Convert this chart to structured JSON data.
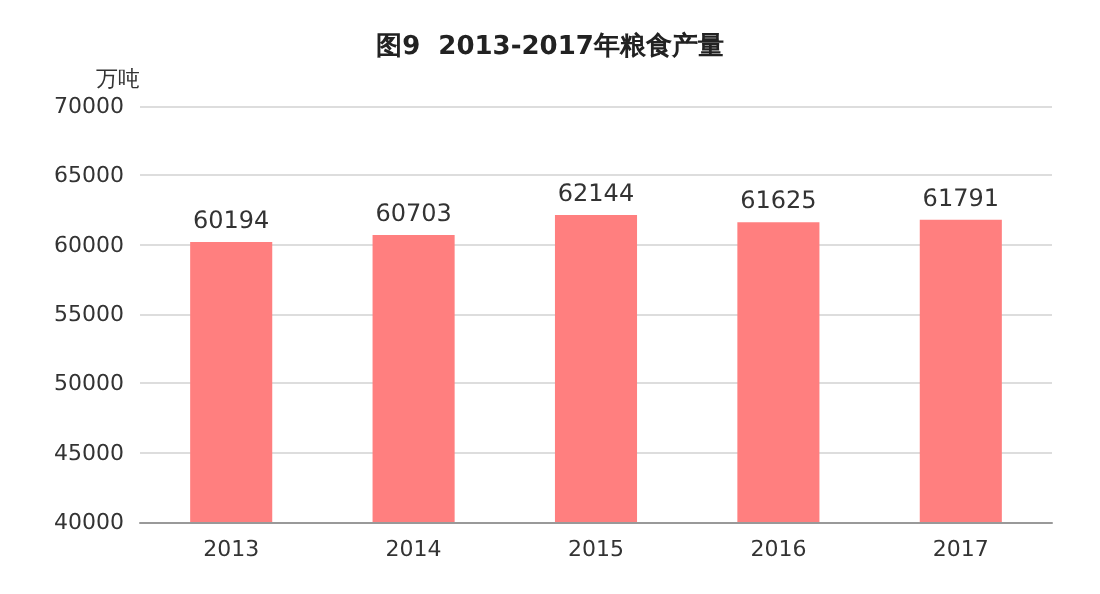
{
  "chart_data": {
    "type": "bar",
    "title": "图9  2013-2017年粮食产量",
    "ylabel": "万吨",
    "categories": [
      "2013",
      "2014",
      "2015",
      "2016",
      "2017"
    ],
    "values": [
      60194,
      60703,
      62144,
      61625,
      61791
    ],
    "color": "#ff7f7f",
    "ylim": [
      40000,
      70000
    ],
    "yticks": [
      40000,
      45000,
      50000,
      55000,
      60000,
      65000,
      70000
    ],
    "grid": "y",
    "data_labels": true
  }
}
